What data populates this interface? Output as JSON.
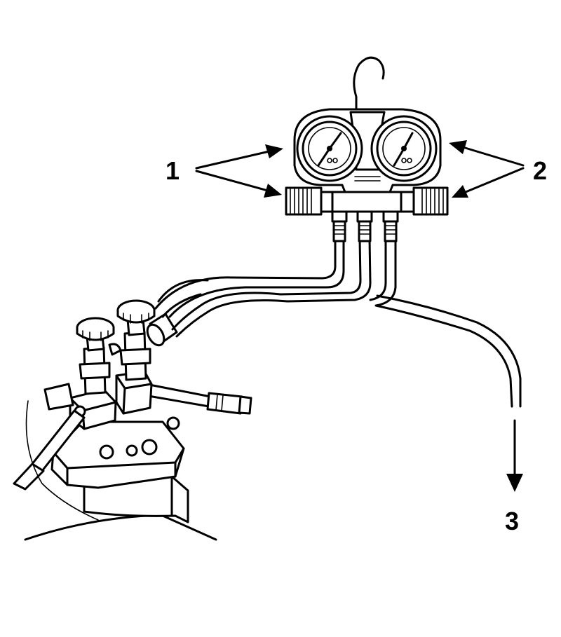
{
  "callouts": [
    {
      "id": "1",
      "label": "1"
    },
    {
      "id": "2",
      "label": "2"
    },
    {
      "id": "3",
      "label": "3"
    }
  ]
}
